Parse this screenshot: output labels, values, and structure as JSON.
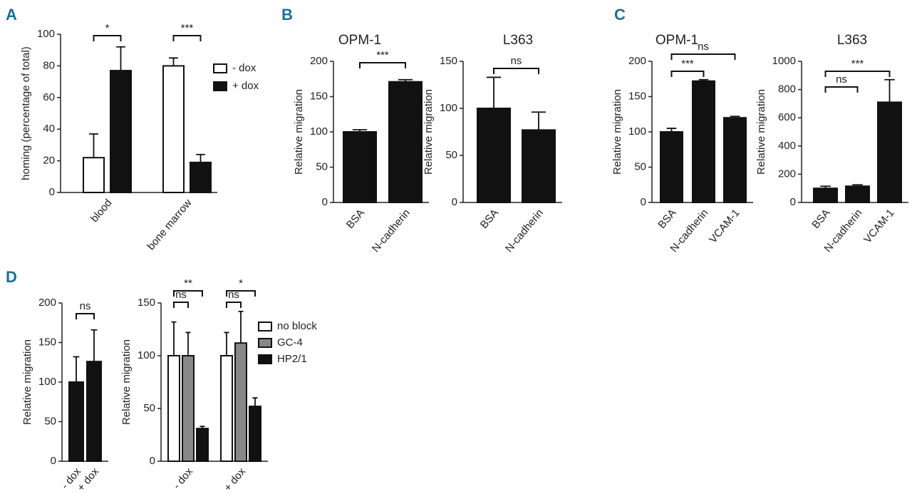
{
  "panel_labels": [
    "A",
    "B",
    "C",
    "D"
  ],
  "chart_data": [
    {
      "type": "bar",
      "y_label": "homing (percentage of total)",
      "categories": [
        "blood",
        "bone marrow"
      ],
      "series": [
        {
          "name": "- dox",
          "color": "#ffffff",
          "values": [
            22,
            80
          ],
          "errors": [
            15,
            5
          ]
        },
        {
          "name": "+ dox",
          "color": "#111111",
          "values": [
            77,
            19
          ],
          "errors": [
            15,
            5
          ]
        }
      ],
      "ylim": [
        0,
        100
      ],
      "yticks": [
        0,
        20,
        40,
        60,
        80,
        100
      ],
      "annotations": [
        "*",
        "***"
      ]
    },
    {
      "type": "bar",
      "title": "OPM-1",
      "y_label": "Relative migration",
      "categories": [
        "BSA",
        "N-cadherin"
      ],
      "values": [
        100,
        171
      ],
      "errors": [
        3,
        3
      ],
      "color": "#111111",
      "ylim": [
        0,
        200
      ],
      "yticks": [
        0,
        50,
        100,
        150,
        200
      ],
      "annotations": [
        "***"
      ]
    },
    {
      "type": "bar",
      "title": "L363",
      "y_label": "Relative migration",
      "categories": [
        "BSA",
        "N-cadherin"
      ],
      "values": [
        100,
        77
      ],
      "errors": [
        33,
        19
      ],
      "color": "#111111",
      "ylim": [
        0,
        150
      ],
      "yticks": [
        0,
        50,
        100,
        150
      ],
      "annotations": [
        "ns"
      ]
    },
    {
      "type": "bar",
      "title": "OPM-1",
      "y_label": "Relative migration",
      "categories": [
        "BSA",
        "N-cadherin",
        "VCAM-1"
      ],
      "values": [
        100,
        172,
        120
      ],
      "errors": [
        5,
        2,
        2
      ],
      "color": "#111111",
      "ylim": [
        0,
        200
      ],
      "yticks": [
        0,
        50,
        100,
        150,
        200
      ],
      "annotations": [
        "***",
        "ns"
      ]
    },
    {
      "type": "bar",
      "title": "L363",
      "y_label": "Relative migration",
      "categories": [
        "BSA",
        "N-cadherin",
        "VCAM-1"
      ],
      "values": [
        100,
        115,
        710
      ],
      "errors": [
        15,
        10,
        160
      ],
      "color": "#111111",
      "ylim": [
        0,
        1000
      ],
      "yticks": [
        0,
        200,
        400,
        600,
        800,
        1000
      ],
      "annotations": [
        "ns",
        "***"
      ]
    },
    {
      "type": "bar",
      "y_label": "Relative migration",
      "categories": [
        "- dox",
        "+ dox"
      ],
      "values": [
        100,
        126
      ],
      "errors": [
        32,
        40
      ],
      "color": "#111111",
      "ylim": [
        0,
        200
      ],
      "yticks": [
        0,
        50,
        100,
        150,
        200
      ],
      "annotations": [
        "ns"
      ]
    },
    {
      "type": "bar",
      "y_label": "Relative migration",
      "categories": [
        "- dox",
        "+ dox"
      ],
      "series": [
        {
          "name": "no block",
          "color": "#ffffff",
          "values": [
            100,
            100
          ],
          "errors": [
            32,
            22
          ]
        },
        {
          "name": "GC-4",
          "color": "#888888",
          "values": [
            100,
            112
          ],
          "errors": [
            22,
            30
          ]
        },
        {
          "name": "HP2/1",
          "color": "#111111",
          "values": [
            31,
            52
          ],
          "errors": [
            2,
            8
          ]
        }
      ],
      "ylim": [
        0,
        150
      ],
      "yticks": [
        0,
        50,
        100,
        150
      ],
      "annotations": [
        "**",
        "ns",
        "*",
        "ns"
      ]
    }
  ]
}
